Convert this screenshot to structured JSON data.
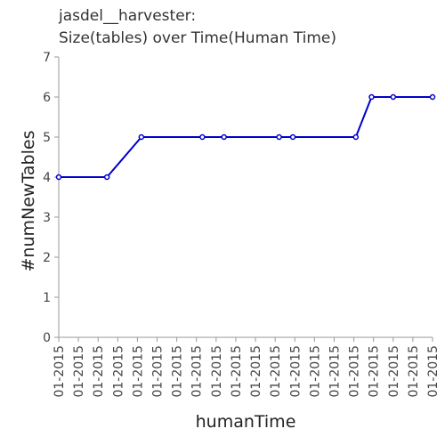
{
  "chart_data": {
    "type": "line",
    "title": "jasdel__harvester:",
    "subtitle": "Size(tables) over Time(Human Time)",
    "xlabel": "humanTime",
    "ylabel": "#numNewTables",
    "ylim": [
      0,
      7
    ],
    "y_ticks": [
      0,
      1,
      2,
      3,
      4,
      5,
      6,
      7
    ],
    "x_tick_labels": [
      "01-2015",
      "01-2015",
      "01-2015",
      "01-2015",
      "01-2015",
      "01-2015",
      "01-2015",
      "01-2015",
      "01-2015",
      "01-2015",
      "01-2015",
      "01-2015",
      "01-2015",
      "01-2015",
      "01-2015",
      "01-2015",
      "01-2015",
      "01-2015",
      "01-2015",
      "01-2015"
    ],
    "xlim": [
      0,
      19
    ],
    "series": [
      {
        "name": "numNewTables",
        "color": "#0000cc",
        "x": [
          0,
          2.45,
          4.2,
          7.3,
          8.4,
          11.2,
          11.9,
          15.1,
          15.9,
          17.0,
          19.0
        ],
        "values": [
          4,
          4,
          5,
          5,
          5,
          5,
          5,
          5,
          6,
          6,
          6
        ]
      }
    ]
  }
}
